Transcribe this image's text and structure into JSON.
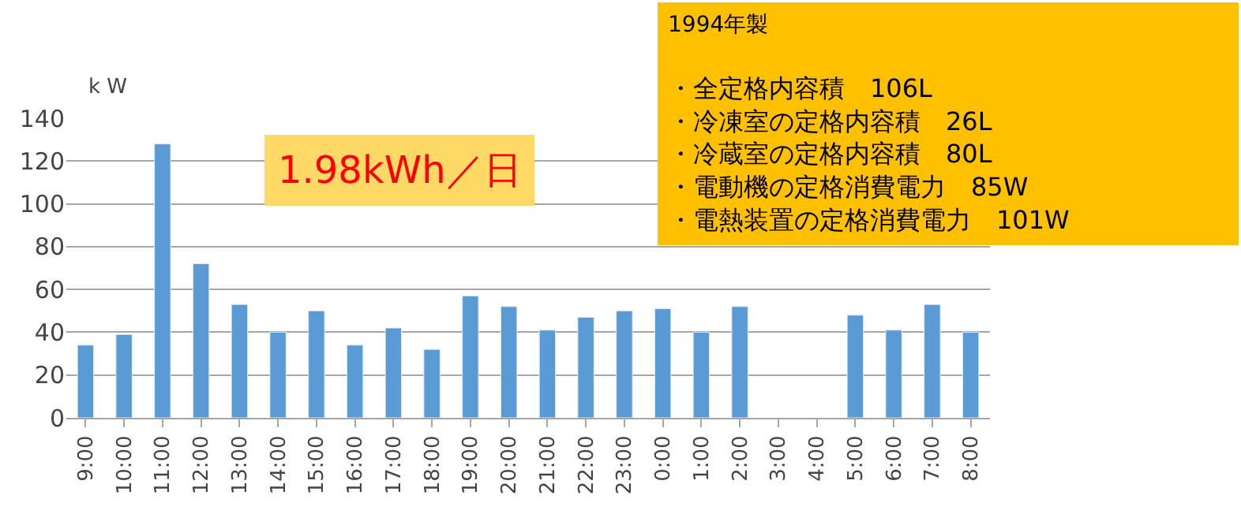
{
  "chart_data": {
    "type": "bar",
    "ylabel": "k W",
    "categories": [
      "9:00",
      "10:00",
      "11:00",
      "12:00",
      "13:00",
      "14:00",
      "15:00",
      "16:00",
      "17:00",
      "18:00",
      "19:00",
      "20:00",
      "21:00",
      "22:00",
      "23:00",
      "0:00",
      "1:00",
      "2:00",
      "3:00",
      "4:00",
      "5:00",
      "6:00",
      "7:00",
      "8:00"
    ],
    "values": [
      34,
      39,
      128,
      72,
      53,
      40,
      50,
      34,
      42,
      32,
      57,
      52,
      41,
      47,
      50,
      51,
      40,
      52,
      null,
      null,
      48,
      41,
      53,
      40
    ],
    "color": "#5b9bd5",
    "ylim": [
      0,
      140
    ],
    "yticks": [
      0,
      20,
      40,
      60,
      80,
      100,
      120,
      140
    ],
    "grid": "y",
    "annotations": [
      "1.98kWh／日",
      "1994年製",
      "・全定格内容積　106L",
      "・冷凍室の定格内容積　26L",
      "・冷蔵室の定格内容積　80L",
      "・電動機の定格消費電力　85W",
      "・電熱装置の定格消費電力　101W"
    ]
  }
}
